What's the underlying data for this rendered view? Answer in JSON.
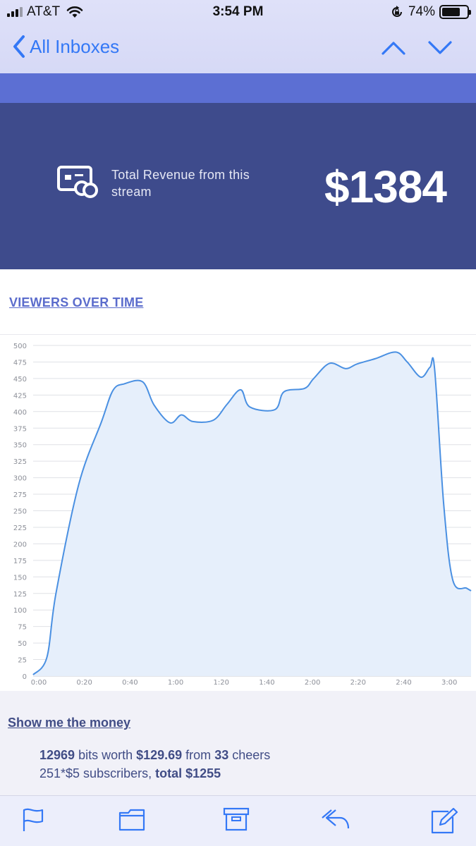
{
  "status_bar": {
    "carrier": "AT&T",
    "time": "3:54 PM",
    "battery": "74%",
    "battery_level": 0.74
  },
  "nav": {
    "back_label": "All Inboxes"
  },
  "revenue": {
    "label": "Total Revenue from this stream",
    "amount": "$1384"
  },
  "viewers_link": "VIEWERS OVER TIME",
  "chart_data": {
    "type": "area",
    "title": "",
    "xlabel": "",
    "ylabel": "",
    "ylim": [
      0,
      500
    ],
    "yticks": [
      0,
      25,
      50,
      75,
      100,
      125,
      150,
      175,
      200,
      225,
      250,
      275,
      300,
      325,
      350,
      375,
      400,
      425,
      450,
      475,
      500
    ],
    "xticks": [
      "0:00",
      "0:20",
      "0:40",
      "1:00",
      "1:20",
      "1:40",
      "2:00",
      "2:20",
      "2:40",
      "3:00"
    ],
    "xlim": [
      0,
      192
    ],
    "grid": true,
    "colors": {
      "line": "#4a90e2",
      "fill": "#e6effb"
    },
    "series": [
      {
        "x": [
          0,
          6,
          10,
          20,
          30,
          35,
          40,
          48,
          53,
          60,
          65,
          70,
          79,
          85,
          91,
          95,
          106,
          110,
          119,
          123,
          130,
          137,
          142,
          150,
          159,
          164,
          170,
          174,
          176,
          180,
          184,
          190,
          192
        ],
        "y": [
          2,
          28,
          125,
          290,
          385,
          432,
          442,
          445,
          410,
          383,
          395,
          385,
          387,
          411,
          433,
          407,
          403,
          430,
          435,
          450,
          473,
          465,
          472,
          480,
          490,
          475,
          452,
          467,
          465,
          260,
          145,
          133,
          129
        ]
      }
    ]
  },
  "money": {
    "link": "Show me the money",
    "line1": {
      "bits": "12969",
      "t1": " bits worth ",
      "worth": "$129.69",
      "t2": " from ",
      "cheers": "33",
      "t3": " cheers"
    },
    "line2": {
      "subs": "251*$5 subscribers, ",
      "total_label": "total",
      "total": " $1255"
    }
  },
  "toolbar": {
    "icons": [
      "flag-icon",
      "folder-icon",
      "archive-icon",
      "reply-icon",
      "compose-icon"
    ],
    "color": "#3478f6"
  }
}
